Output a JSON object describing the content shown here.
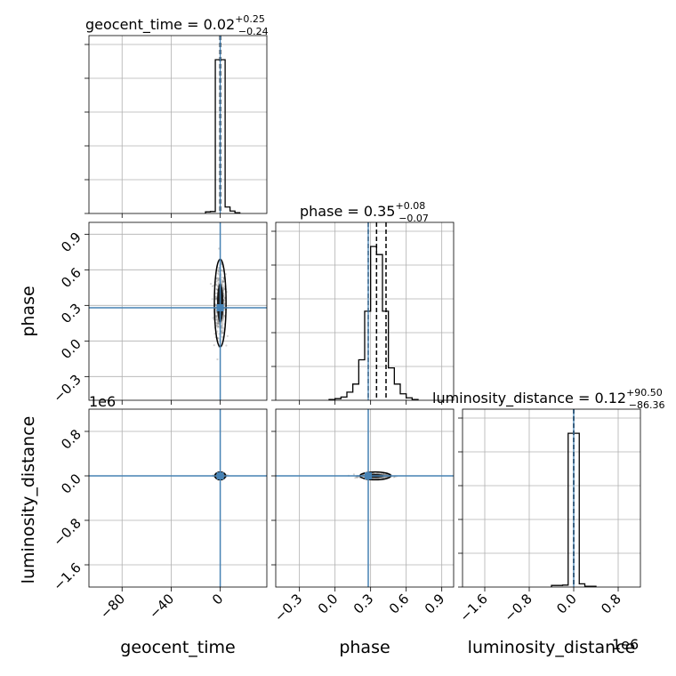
{
  "chart_data": {
    "type": "corner",
    "parameters": [
      "geocent_time",
      "phase",
      "luminosity_distance"
    ],
    "colors": {
      "truth": "#4682b4",
      "hist": "#000000",
      "scatter": "#808080",
      "grid": "#b0b0b0"
    },
    "geocent_time": {
      "title": {
        "base": "geocent_time = 0.02",
        "sup": "+0.25",
        "sub": "−0.24"
      },
      "xlabel": "geocent_time",
      "xticks": [
        -80,
        -40,
        0
      ],
      "xtick_labels": [
        "−80",
        "−40",
        "0"
      ],
      "range": [
        -107,
        38
      ],
      "truth": 0,
      "quantiles": [
        -0.22,
        0.02,
        0.27
      ],
      "hist": {
        "edges": [
          -12,
          -8,
          -4,
          0,
          4,
          8,
          12,
          16
        ],
        "counts": [
          0.01,
          0.012,
          0.95,
          0.95,
          0.04,
          0.015,
          0.005
        ],
        "ymax": 1.0
      }
    },
    "phase": {
      "title": {
        "base": "phase = 0.35",
        "sup": "+0.08",
        "sub": "−0.07"
      },
      "xlabel": "phase",
      "ylabel": "phase",
      "xticks": [
        -0.3,
        0.0,
        0.3,
        0.6,
        0.9
      ],
      "xtick_labels": [
        "−0.3",
        "0.0",
        "0.3",
        "0.6",
        "0.9"
      ],
      "yticks": [
        -0.3,
        0.0,
        0.3,
        0.6,
        0.9
      ],
      "ytick_labels": [
        "−0.3",
        "0.0",
        "0.3",
        "0.6",
        "0.9"
      ],
      "range": [
        -0.5,
        1.0
      ],
      "truth": 0.28,
      "quantiles": [
        0.28,
        0.35,
        0.43
      ],
      "hist": {
        "edges": [
          -0.05,
          0.0,
          0.05,
          0.1,
          0.15,
          0.2,
          0.25,
          0.3,
          0.35,
          0.4,
          0.45,
          0.5,
          0.55,
          0.6,
          0.65,
          0.7
        ],
        "counts": [
          0.005,
          0.01,
          0.02,
          0.05,
          0.1,
          0.25,
          0.55,
          0.95,
          0.9,
          0.55,
          0.2,
          0.1,
          0.04,
          0.015,
          0.005
        ],
        "ymax": 1.0
      }
    },
    "luminosity_distance": {
      "title": {
        "base": "luminosity_distance = 0.12",
        "sup": "+90.50",
        "sub": "−86.36"
      },
      "xlabel": "luminosity_distance",
      "ylabel": "luminosity_distance",
      "offset_text": "1e6",
      "xticks": [
        -1.6,
        -0.8,
        0.0,
        0.8
      ],
      "xtick_labels": [
        "−1.6",
        "−0.8",
        "0.0",
        "0.8"
      ],
      "yticks": [
        -1.6,
        -0.8,
        0.0,
        0.8
      ],
      "ytick_labels": [
        "−1.6",
        "−0.8",
        "0.0",
        "0.8"
      ],
      "range": [
        -2.0,
        1.2
      ],
      "truth": 0,
      "quantiles": [
        -0.0001,
        0.0,
        0.0001
      ],
      "hist": {
        "edges": [
          -0.4,
          -0.2,
          -0.1,
          0.0,
          0.1,
          0.2,
          0.4
        ],
        "counts": [
          0.01,
          0.012,
          0.95,
          0.95,
          0.02,
          0.005
        ],
        "ymax": 1.0
      }
    },
    "scatter": {
      "phase_vs_geocent_time": {
        "center": [
          0,
          0.32
        ],
        "spread": [
          2.2,
          0.14
        ]
      },
      "ld_vs_geocent_time": {
        "center": [
          0,
          0.0
        ],
        "spread": [
          2.0,
          0.01
        ]
      },
      "ld_vs_phase": {
        "center": [
          0.34,
          0.0
        ],
        "spread": [
          0.06,
          0.02
        ]
      }
    },
    "grid": true
  }
}
